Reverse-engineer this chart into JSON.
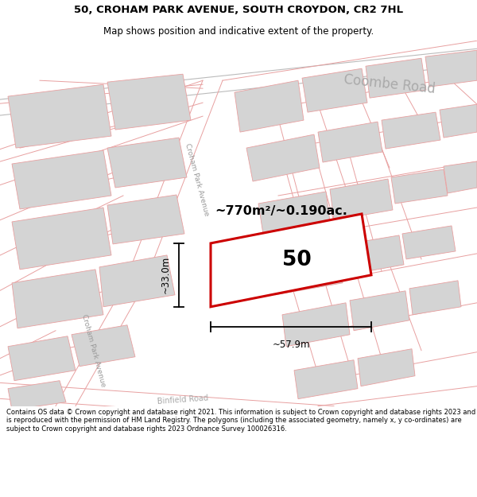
{
  "title_line1": "50, CROHAM PARK AVENUE, SOUTH CROYDON, CR2 7HL",
  "title_line2": "Map shows position and indicative extent of the property.",
  "footer_text": "Contains OS data © Crown copyright and database right 2021. This information is subject to Crown copyright and database rights 2023 and is reproduced with the permission of HM Land Registry. The polygons (including the associated geometry, namely x, y co-ordinates) are subject to Crown copyright and database rights 2023 Ordnance Survey 100026316.",
  "road_label_coombe": "Coombe Road",
  "road_label_croham1": "Croham Park Avenue",
  "road_label_croham2": "Croham Park Avenue",
  "road_label_binfield": "Binfield Road",
  "area_label": "~770m²/~0.190ac.",
  "plot_number": "50",
  "dim_width": "~57.9m",
  "dim_height": "~33.0m",
  "map_bg": "#ffffff",
  "block_fill": "#d4d4d4",
  "block_edge": "#e8a0a0",
  "road_line_color": "#e8a0a0",
  "highlight_fill": "#ffffff",
  "highlight_edge": "#cc0000",
  "coombe_road_color": "#bbbbbb",
  "street_label_color": "#aaaaaa",
  "title_fontsize": 9.5,
  "subtitle_fontsize": 8.5,
  "footer_fontsize": 6.0
}
